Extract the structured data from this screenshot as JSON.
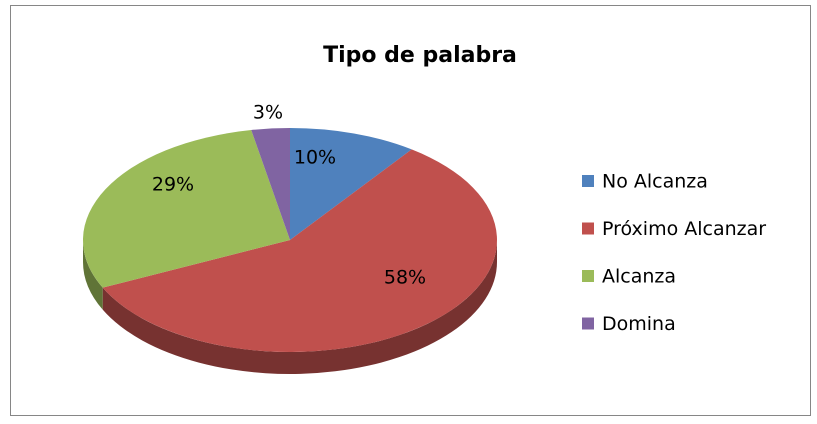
{
  "chart_data": {
    "type": "pie",
    "title": "Tipo de palabra",
    "categories": [
      "No Alcanza",
      "Próximo Alcanzar",
      "Alcanza",
      "Domina"
    ],
    "values": [
      10,
      58,
      29,
      3
    ],
    "value_labels": [
      "10%",
      "58%",
      "29%",
      "3%"
    ],
    "colors": [
      "#4f81bd",
      "#c0504d",
      "#9bbb59",
      "#8064a2"
    ],
    "legend": "right"
  }
}
